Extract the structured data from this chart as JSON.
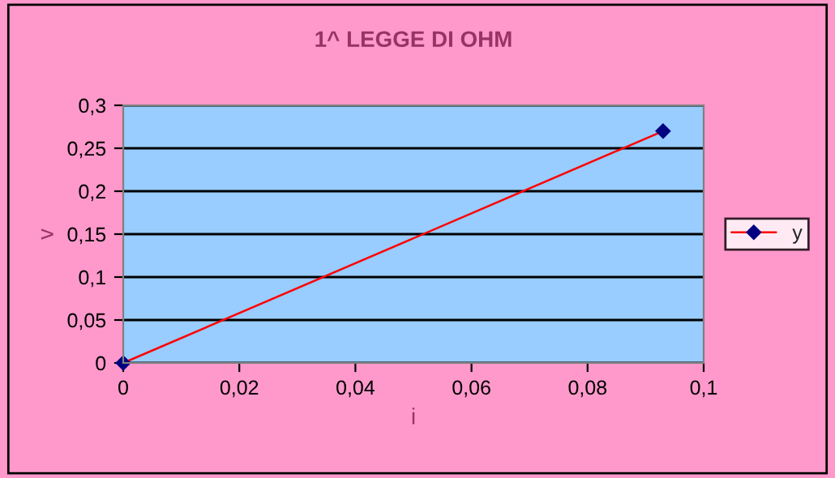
{
  "chart_data": {
    "type": "line",
    "title": "1^ LEGGE DI OHM",
    "xlabel": "i",
    "ylabel": "v",
    "x": [
      0,
      0.093
    ],
    "series": [
      {
        "name": "y",
        "type": "line",
        "color": "#ff0000",
        "values": [
          0,
          0.27
        ]
      }
    ],
    "xlim": [
      0,
      0.1
    ],
    "xticks": [
      0,
      {
        "value": 0.02,
        "label": "0,02"
      },
      {
        "value": 0.04,
        "label": "0,04"
      },
      {
        "value": 0.06,
        "label": "0,06"
      },
      {
        "value": 0.08,
        "label": "0,08"
      },
      {
        "value": 0.1,
        "label": "0,1"
      }
    ],
    "ylim": [
      0,
      0.3
    ],
    "yticks": [
      0,
      {
        "value": 0.05,
        "label": "0,05"
      },
      {
        "value": 0.1,
        "label": "0,1"
      },
      {
        "value": 0.15,
        "label": "0,15"
      },
      {
        "value": 0.2,
        "label": "0,2"
      },
      {
        "value": 0.25,
        "label": "0,25"
      },
      {
        "value": 0.3,
        "label": "0,3"
      }
    ],
    "grid": "y",
    "legend": "right",
    "marker": "diamond",
    "line_style": "solid"
  }
}
